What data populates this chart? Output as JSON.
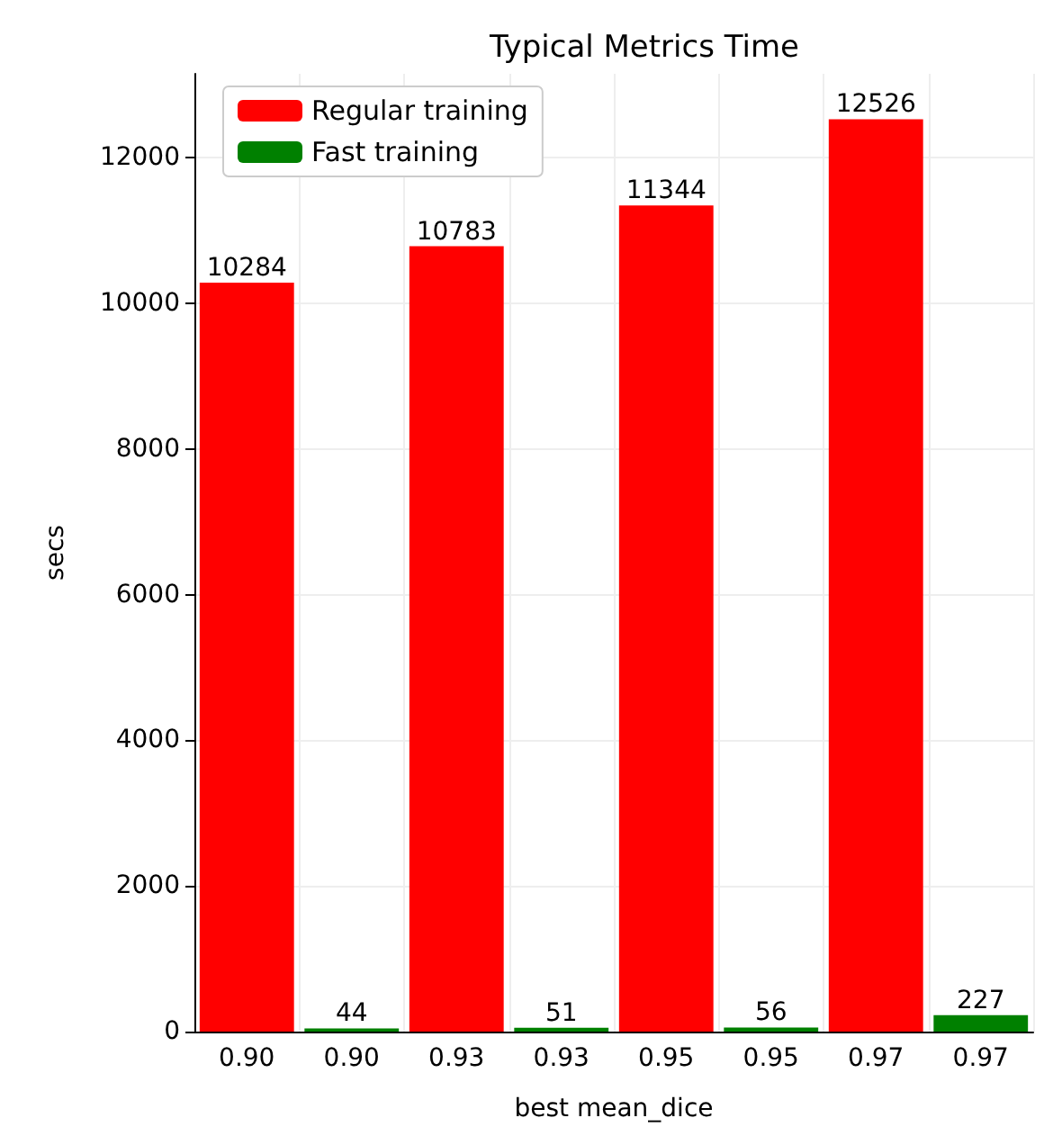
{
  "chart_data": {
    "type": "bar",
    "title": "Typical Metrics Time",
    "xlabel": "best mean_dice",
    "ylabel": "secs",
    "categories": [
      "0.90",
      "0.90",
      "0.93",
      "0.93",
      "0.95",
      "0.95",
      "0.97",
      "0.97"
    ],
    "series": [
      {
        "name": "Regular training",
        "color": "#ff0000",
        "values": [
          10284,
          null,
          10783,
          null,
          11344,
          null,
          12526,
          null
        ]
      },
      {
        "name": "Fast training",
        "color": "#008000",
        "values": [
          null,
          44,
          null,
          51,
          null,
          56,
          null,
          227
        ]
      }
    ],
    "ylim": [
      0,
      13150
    ],
    "yticks": [
      0,
      2000,
      4000,
      6000,
      8000,
      10000,
      12000
    ],
    "grid": true,
    "legend": "top left",
    "data_labels": true
  }
}
